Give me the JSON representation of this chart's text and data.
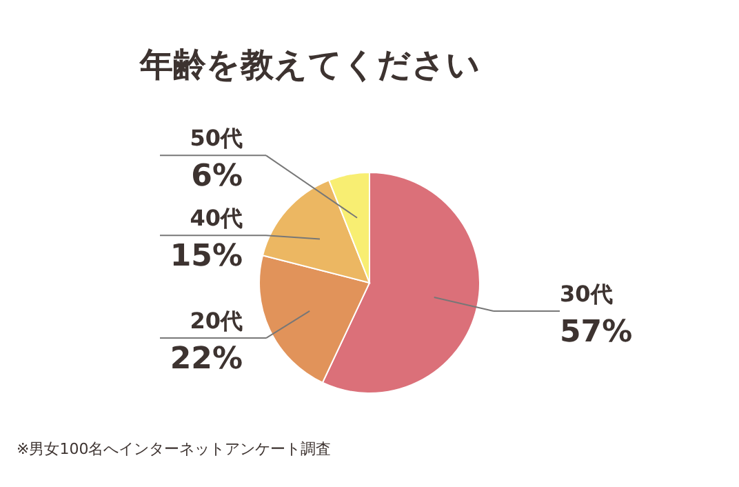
{
  "chart_data": {
    "type": "pie",
    "title": "年齢を教えてください",
    "categories": [
      "30代",
      "20代",
      "40代",
      "50代"
    ],
    "values": [
      57,
      22,
      15,
      6
    ],
    "colors": [
      "#db7079",
      "#e1935a",
      "#ecb762",
      "#f8ee72"
    ],
    "value_labels": [
      "57%",
      "22%",
      "15%",
      "6%"
    ],
    "annotations": [
      "※男女100名へインターネットアンケート調査"
    ]
  }
}
